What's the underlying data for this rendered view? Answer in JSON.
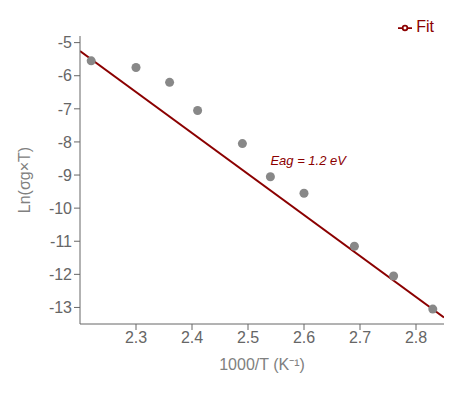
{
  "chart_data": {
    "type": "scatter",
    "xlabel": "1000/T (K⁻¹)",
    "ylabel": "Ln(σg×T)",
    "series": [
      {
        "name": "Fit",
        "type": "line",
        "color": "#8B0000",
        "x": [
          2.2,
          2.85
        ],
        "values": [
          -5.256,
          -13.303
        ]
      },
      {
        "type": "scatter",
        "color": "#888888",
        "x": [
          2.22,
          2.3,
          2.36,
          2.41,
          2.49,
          2.54,
          2.6,
          2.69,
          2.76,
          2.83
        ],
        "values": [
          -5.55,
          -5.75,
          -6.2,
          -7.05,
          -8.05,
          -9.05,
          -9.55,
          -11.15,
          -12.05,
          -13.05
        ]
      }
    ],
    "annotations": [
      {
        "text": "Eag = 1.2 eV",
        "x": 2.54,
        "y": -8.7,
        "color": "#8B0000"
      }
    ],
    "xlim": [
      2.2,
      2.85
    ],
    "ylim": [
      -13.5,
      -4.8
    ],
    "xticks": [
      2.3,
      2.4,
      2.5,
      2.6,
      2.7,
      2.8
    ],
    "yticks": [
      -5,
      -6,
      -7,
      -8,
      -9,
      -10,
      -11,
      -12,
      -13
    ],
    "grid": false,
    "legend": "upper right"
  }
}
